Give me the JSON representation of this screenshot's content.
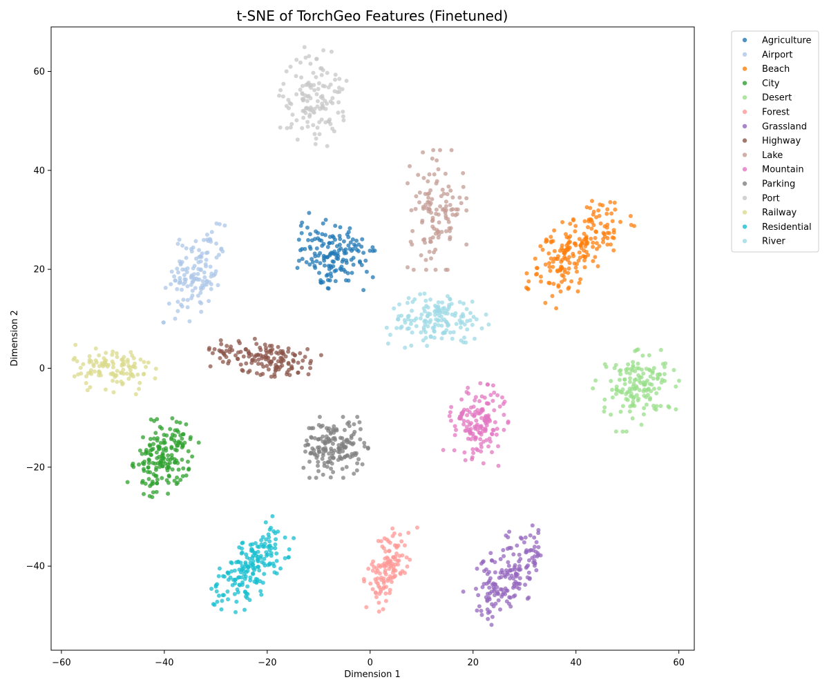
{
  "chart_data": {
    "type": "scatter",
    "title": "t-SNE of TorchGeo Features (Finetuned)",
    "xlabel": "Dimension 1",
    "ylabel": "Dimension 2",
    "xlim": [
      -62,
      63
    ],
    "ylim": [
      -57,
      69
    ],
    "xticks": [
      -60,
      -40,
      -20,
      0,
      20,
      40,
      60
    ],
    "yticks": [
      -40,
      -20,
      0,
      20,
      40,
      60
    ],
    "grid": false,
    "legend_position": "outside-top-right",
    "series": [
      {
        "name": "Agriculture",
        "color": "#1f77b4",
        "cluster": {
          "cx": -7,
          "cy": 23,
          "sx": 4,
          "sy": 3.6,
          "angle": -35,
          "n": 150
        }
      },
      {
        "name": "Airport",
        "color": "#aec7e8",
        "cluster": {
          "cx": -34,
          "cy": 19,
          "sx": 2.2,
          "sy": 5,
          "angle": -15,
          "n": 130
        }
      },
      {
        "name": "Beach",
        "color": "#ff7f0e",
        "cluster": {
          "cx": 40,
          "cy": 24,
          "sx": 2.6,
          "sy": 5.5,
          "angle": -40,
          "n": 200
        }
      },
      {
        "name": "City",
        "color": "#2ca02c",
        "cluster": {
          "cx": -40,
          "cy": -18,
          "sx": 2.4,
          "sy": 3.8,
          "angle": -20,
          "n": 170
        }
      },
      {
        "name": "Desert",
        "color": "#98df8a",
        "cluster": {
          "cx": 52,
          "cy": -4,
          "sx": 3.6,
          "sy": 3.2,
          "angle": 25,
          "n": 150
        }
      },
      {
        "name": "Forest",
        "color": "#ff9896",
        "cluster": {
          "cx": 3.5,
          "cy": -40,
          "sx": 1.6,
          "sy": 4.2,
          "angle": -20,
          "n": 120
        }
      },
      {
        "name": "Grassland",
        "color": "#9467bd",
        "cluster": {
          "cx": 27,
          "cy": -42,
          "sx": 2.6,
          "sy": 5.2,
          "angle": -40,
          "n": 170
        }
      },
      {
        "name": "Highway",
        "color": "#8c564b",
        "cluster": {
          "cx": -20,
          "cy": 2,
          "sx": 5.2,
          "sy": 1.6,
          "angle": -10,
          "n": 150
        }
      },
      {
        "name": "Lake",
        "color": "#c49c94",
        "cluster": {
          "cx": 13,
          "cy": 32,
          "sx": 2.6,
          "sy": 5.5,
          "angle": 0,
          "n": 120
        }
      },
      {
        "name": "Mountain",
        "color": "#e377c2",
        "cluster": {
          "cx": 21,
          "cy": -11,
          "sx": 2.6,
          "sy": 3.6,
          "angle": -10,
          "n": 150
        }
      },
      {
        "name": "Parking",
        "color": "#7f7f7f",
        "cluster": {
          "cx": -7,
          "cy": -16,
          "sx": 3,
          "sy": 2.8,
          "angle": 0,
          "n": 160
        }
      },
      {
        "name": "Port",
        "color": "#c7c7c7",
        "cluster": {
          "cx": -11,
          "cy": 55,
          "sx": 3,
          "sy": 4.3,
          "angle": -10,
          "n": 130
        }
      },
      {
        "name": "Railway",
        "color": "#dbdb8d",
        "cluster": {
          "cx": -50,
          "cy": 0,
          "sx": 3.8,
          "sy": 2.2,
          "angle": -5,
          "n": 110
        }
      },
      {
        "name": "Residential",
        "color": "#17becf",
        "cluster": {
          "cx": -23,
          "cy": -40,
          "sx": 2.2,
          "sy": 4.8,
          "angle": -35,
          "n": 180
        }
      },
      {
        "name": "River",
        "color": "#9edae5",
        "cluster": {
          "cx": 13,
          "cy": 10,
          "sx": 4.5,
          "sy": 2.4,
          "angle": 5,
          "n": 150
        }
      }
    ]
  }
}
